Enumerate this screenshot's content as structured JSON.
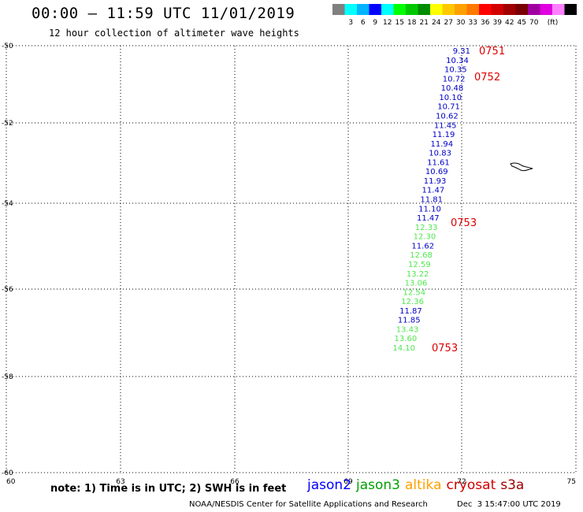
{
  "header": {
    "title": "00:00 – 11:59 UTC 11/01/2019",
    "subtitle": "12 hour collection of altimeter wave heights"
  },
  "legend": {
    "colors": [
      "#808080",
      "#00ffff",
      "#00b4ff",
      "#0000ff",
      "#00ffff",
      "#00ff00",
      "#00c800",
      "#008c00",
      "#ffff00",
      "#ffc800",
      "#ffa000",
      "#ff7800",
      "#ff0000",
      "#d20000",
      "#a00000",
      "#780000",
      "#a000a0",
      "#e000e0",
      "#ff80ff",
      "#000000"
    ],
    "labels": [
      "3",
      "6",
      "9",
      "12",
      "15",
      "18",
      "21",
      "24",
      "27",
      "30",
      "33",
      "36",
      "39",
      "42",
      "45",
      "70"
    ],
    "unit": "(ft)"
  },
  "map": {
    "lon_range": [
      60,
      75
    ],
    "lat_range": [
      -60,
      -50
    ],
    "lon_ticks": [
      "60",
      "63",
      "66",
      "69",
      "72",
      "75"
    ],
    "lat_ticks": [
      "-50",
      "-52",
      "-54",
      "-56",
      "-58",
      "-60"
    ],
    "grid": "dotted",
    "readings": [
      {
        "value": "9.31",
        "sat": "jason2"
      },
      {
        "value": "10.34",
        "sat": "jason2"
      },
      {
        "value": "10.35",
        "sat": "jason2"
      },
      {
        "value": "10.72",
        "sat": "jason2"
      },
      {
        "value": "10.48",
        "sat": "jason2"
      },
      {
        "value": "10.10",
        "sat": "jason2"
      },
      {
        "value": "10.71",
        "sat": "jason2"
      },
      {
        "value": "10.62",
        "sat": "jason2"
      },
      {
        "value": "11.45",
        "sat": "jason2"
      },
      {
        "value": "11.19",
        "sat": "jason2"
      },
      {
        "value": "11.94",
        "sat": "jason2"
      },
      {
        "value": "10.83",
        "sat": "jason2"
      },
      {
        "value": "11.61",
        "sat": "jason2"
      },
      {
        "value": "10.69",
        "sat": "jason2"
      },
      {
        "value": "11.93",
        "sat": "jason2"
      },
      {
        "value": "11.47",
        "sat": "jason2"
      },
      {
        "value": "11.81",
        "sat": "jason2"
      },
      {
        "value": "11.10",
        "sat": "jason2"
      },
      {
        "value": "11.47",
        "sat": "jason2"
      },
      {
        "value": "12.33",
        "sat": "jason3"
      },
      {
        "value": "12.30",
        "sat": "jason3"
      },
      {
        "value": "11.62",
        "sat": "jason2"
      },
      {
        "value": "12.68",
        "sat": "jason3"
      },
      {
        "value": "12.59",
        "sat": "jason3"
      },
      {
        "value": "13.22",
        "sat": "jason3"
      },
      {
        "value": "13.06",
        "sat": "jason3"
      },
      {
        "value": "12.54",
        "sat": "jason3"
      },
      {
        "value": "12.36",
        "sat": "jason3"
      },
      {
        "value": "11.87",
        "sat": "jason2"
      },
      {
        "value": "11.85",
        "sat": "jason2"
      },
      {
        "value": "13.43",
        "sat": "jason3"
      },
      {
        "value": "13.60",
        "sat": "jason3"
      },
      {
        "value": "14.10",
        "sat": "jason3"
      }
    ],
    "time_labels": [
      "0751",
      "0752",
      "0753",
      "0753"
    ],
    "sat_colors": {
      "jason2": "#0000c8",
      "jason3": "#50e650"
    }
  },
  "footer": {
    "note": "note: 1) Time is in UTC; 2) SWH is in feet",
    "satellites": [
      {
        "name": "jason2",
        "color": "#0000ff"
      },
      {
        "name": "jason3",
        "color": "#00a000"
      },
      {
        "name": "altika",
        "color": "#ffa000"
      },
      {
        "name": "cryosat",
        "color": "#d20000"
      },
      {
        "name": "s3a",
        "color": "#a00000"
      }
    ],
    "credit": "NOAA/NESDIS Center for Satellite Applications and Research",
    "generated": "Dec  3 15:47:00 UTC 2019"
  }
}
